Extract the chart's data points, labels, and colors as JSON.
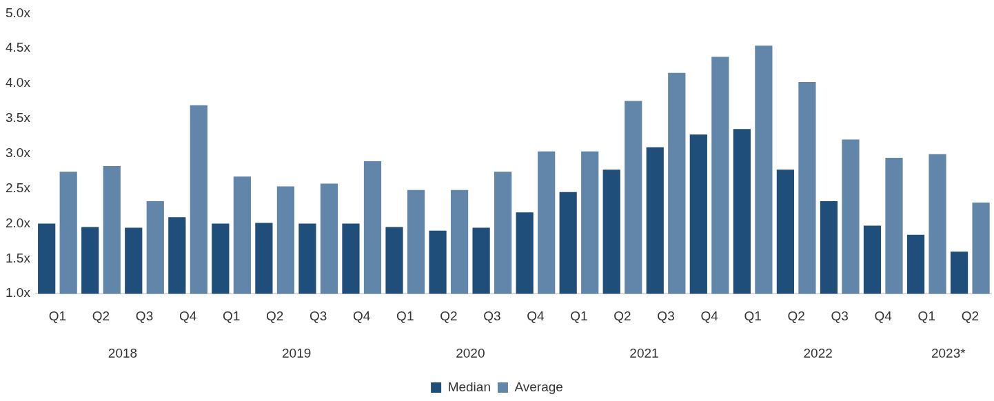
{
  "chart_data": {
    "type": "bar",
    "categories": [
      "Q1",
      "Q2",
      "Q3",
      "Q4",
      "Q1",
      "Q2",
      "Q3",
      "Q4",
      "Q1",
      "Q2",
      "Q3",
      "Q4",
      "Q1",
      "Q2",
      "Q3",
      "Q4",
      "Q1",
      "Q2",
      "Q3",
      "Q4",
      "Q1",
      "Q2"
    ],
    "series": [
      {
        "name": "Median",
        "color": "#1f4e7b",
        "values": [
          2.0,
          1.95,
          1.94,
          2.09,
          2.0,
          2.01,
          2.0,
          2.0,
          1.95,
          1.9,
          1.94,
          2.16,
          2.45,
          2.77,
          3.09,
          3.27,
          3.35,
          2.77,
          2.32,
          1.97,
          1.84,
          1.6
        ]
      },
      {
        "name": "Average",
        "color": "#6186aa",
        "values": [
          2.74,
          2.82,
          2.32,
          3.69,
          2.67,
          2.53,
          2.57,
          2.89,
          2.48,
          2.48,
          2.74,
          3.03,
          3.03,
          3.75,
          4.15,
          4.38,
          4.54,
          4.02,
          3.2,
          2.94,
          2.99,
          2.3
        ]
      }
    ],
    "ylim": [
      1.0,
      5.0
    ],
    "yticks": [
      {
        "value": 1.0,
        "label": "1.0x"
      },
      {
        "value": 1.5,
        "label": "1.5x"
      },
      {
        "value": 2.0,
        "label": "2.0x"
      },
      {
        "value": 2.5,
        "label": "2.5x"
      },
      {
        "value": 3.0,
        "label": "3.0x"
      },
      {
        "value": 3.5,
        "label": "3.5x"
      },
      {
        "value": 4.0,
        "label": "4.0x"
      },
      {
        "value": 4.5,
        "label": "4.5x"
      },
      {
        "value": 5.0,
        "label": "5.0x"
      }
    ],
    "annotations": [
      "2018",
      "2019",
      "2020",
      "2021",
      "2022",
      "2023*"
    ],
    "grid": false,
    "legend": "bottom"
  }
}
